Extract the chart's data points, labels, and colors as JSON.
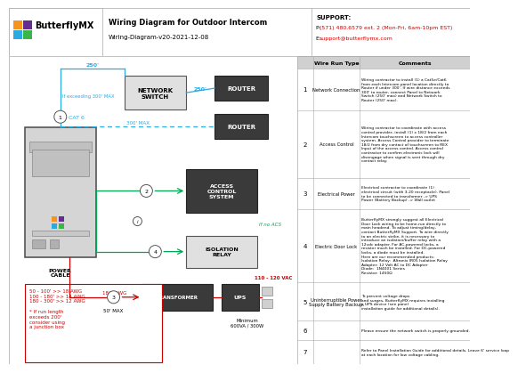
{
  "title": "Wiring Diagram for Outdoor Intercom",
  "subtitle": "Wiring-Diagram-v20-2021-12-08",
  "support_title": "SUPPORT:",
  "support_phone_prefix": "P: ",
  "support_phone": "(571) 480.6579 ext. 2 (Mon-Fri, 6am-10pm EST)",
  "support_email_prefix": "E: ",
  "support_email": "support@butterflymx.com",
  "bg_color": "#ffffff",
  "logo_colors": [
    "#f7941d",
    "#662d91",
    "#29abe2",
    "#39b54a"
  ],
  "table_rows": [
    {
      "num": "1",
      "type": "Network Connection",
      "comment": "Wiring contractor to install (1) a Cat5e/Cat6\nfrom each Intercom panel location directly to\nRouter if under 300'. If wire distance exceeds\n300' to router, connect Panel to Network\nSwitch (250' max) and Network Switch to\nRouter (250' max)."
    },
    {
      "num": "2",
      "type": "Access Control",
      "comment": "Wiring contractor to coordinate with access\ncontrol provider, install (1) x 18/2 from each\nIntercom touchscreen to access controller\nsystem. Access Control provider to terminate\n18/2 from dry contact of touchscreen to REX\nInput of the access control. Access control\ncontractor to confirm electronic lock will\ndisengage when signal is sent through dry\ncontact relay."
    },
    {
      "num": "3",
      "type": "Electrical Power",
      "comment": "Electrical contractor to coordinate (1)\nelectrical circuit (with 3-20 receptacle). Panel\nto be connected to transformer -> UPS\nPower (Battery Backup) -> Wall outlet"
    },
    {
      "num": "4",
      "type": "Electric Door Lock",
      "comment": "ButterflyMX strongly suggest all Electrical\nDoor Lock wiring to be home-run directly to\nmain headend. To adjust timing/delay,\ncontact ButterflyMX Support. To wire directly\nto an electric strike, it is necessary to\nintroduce an isolation/buffer relay with a\n12vdc adapter. For AC-powered locks, a\nresistor much be installed. For DC-powered\nlocks, a diode must be installed.\nHere are our recommended products:\nIsolation Relay:  Altronix IR05 Isolation Relay\nAdapter: 12 Volt AC to DC Adapter\nDiode:  1N4001 Series\nResistor: 1450Ω"
    },
    {
      "num": "5",
      "type": "Uninterruptible Power\nSupply Battery Backup.",
      "comment": "To prevent voltage drops\nand surges, ButterflyMX requires installing\na UPS device (see panel\ninstallation guide for additional details)."
    },
    {
      "num": "6",
      "type": "",
      "comment": "Please ensure the network switch is properly grounded."
    },
    {
      "num": "7",
      "type": "",
      "comment": "Refer to Panel Installation Guide for additional details. Leave 6' service loop\nat each location for low voltage cabling."
    }
  ],
  "cyan": "#29abe2",
  "green": "#00a651",
  "red": "#cc0000",
  "dark_box": "#404040",
  "light_box": "#e8e8e8",
  "panel_box": "#d0d0d0"
}
